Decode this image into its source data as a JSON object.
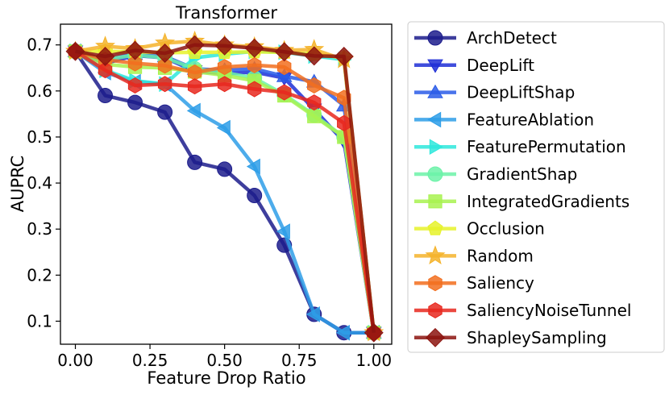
{
  "chart_data": {
    "type": "line",
    "title": "Transformer",
    "xlabel": "Feature Drop Ratio",
    "ylabel": "AUPRC",
    "xlim": [
      -0.05,
      1.06
    ],
    "ylim": [
      0.05,
      0.745
    ],
    "xticks": [
      "0.00",
      "0.25",
      "0.50",
      "0.75",
      "1.00"
    ],
    "yticks": [
      "0.1",
      "0.2",
      "0.3",
      "0.4",
      "0.5",
      "0.6",
      "0.7"
    ],
    "x": [
      0.0,
      0.1,
      0.2,
      0.3,
      0.4,
      0.5,
      0.6,
      0.7,
      0.8,
      0.9,
      1.0
    ],
    "grid": false,
    "legend_position": "outside-right",
    "series": [
      {
        "name": "ArchDetect",
        "color": "#1c1c8c",
        "marker": "circle",
        "values": [
          0.686,
          0.59,
          0.575,
          0.554,
          0.445,
          0.43,
          0.373,
          0.265,
          0.115,
          0.075,
          0.075
        ]
      },
      {
        "name": "DeepLift",
        "color": "#1f2fd6",
        "marker": "triangle-down",
        "values": [
          0.686,
          0.66,
          0.677,
          0.672,
          0.643,
          0.638,
          0.641,
          0.628,
          0.56,
          0.49,
          0.075
        ]
      },
      {
        "name": "DeepLiftShap",
        "color": "#2a5ce8",
        "marker": "triangle-up",
        "values": [
          0.686,
          0.668,
          0.68,
          0.675,
          0.648,
          0.645,
          0.648,
          0.632,
          0.62,
          0.568,
          0.075
        ]
      },
      {
        "name": "FeatureAblation",
        "color": "#2e9ee8",
        "marker": "triangle-left",
        "values": [
          0.686,
          0.64,
          0.62,
          0.615,
          0.557,
          0.52,
          0.436,
          0.295,
          0.115,
          0.075,
          0.075
        ]
      },
      {
        "name": "FeaturePermutation",
        "color": "#2ee8dc",
        "marker": "triangle-right",
        "values": [
          0.686,
          0.645,
          0.622,
          0.615,
          0.672,
          0.68,
          0.686,
          0.684,
          0.676,
          0.668,
          0.075
        ]
      },
      {
        "name": "GradientShap",
        "color": "#6cf2a8",
        "marker": "circle",
        "values": [
          0.686,
          0.668,
          0.678,
          0.672,
          0.648,
          0.64,
          0.628,
          0.592,
          0.548,
          0.5,
          0.075
        ]
      },
      {
        "name": "IntegratedGradients",
        "color": "#a8f250",
        "marker": "square",
        "values": [
          0.686,
          0.658,
          0.652,
          0.65,
          0.642,
          0.634,
          0.622,
          0.59,
          0.545,
          0.5,
          0.075
        ]
      },
      {
        "name": "Occlusion",
        "color": "#e6f22a",
        "marker": "pentagon",
        "values": [
          0.686,
          0.686,
          0.685,
          0.683,
          0.684,
          0.684,
          0.685,
          0.684,
          0.68,
          0.672,
          0.075
        ]
      },
      {
        "name": "Random",
        "color": "#f5b32a",
        "marker": "star",
        "values": [
          0.686,
          0.697,
          0.692,
          0.704,
          0.708,
          0.7,
          0.696,
          0.688,
          0.69,
          0.668,
          0.075
        ]
      },
      {
        "name": "Saliency",
        "color": "#f26e1e",
        "marker": "hexagon",
        "values": [
          0.686,
          0.668,
          0.66,
          0.655,
          0.64,
          0.652,
          0.656,
          0.652,
          0.612,
          0.585,
          0.075
        ]
      },
      {
        "name": "SaliencyNoiseTunnel",
        "color": "#e8281e",
        "marker": "hexagon",
        "values": [
          0.686,
          0.645,
          0.612,
          0.615,
          0.61,
          0.615,
          0.604,
          0.597,
          0.575,
          0.53,
          0.075
        ]
      },
      {
        "name": "ShapleySampling",
        "color": "#8c140f",
        "marker": "diamond",
        "values": [
          0.686,
          0.675,
          0.688,
          0.682,
          0.7,
          0.698,
          0.693,
          0.685,
          0.676,
          0.675,
          0.075
        ]
      }
    ]
  }
}
